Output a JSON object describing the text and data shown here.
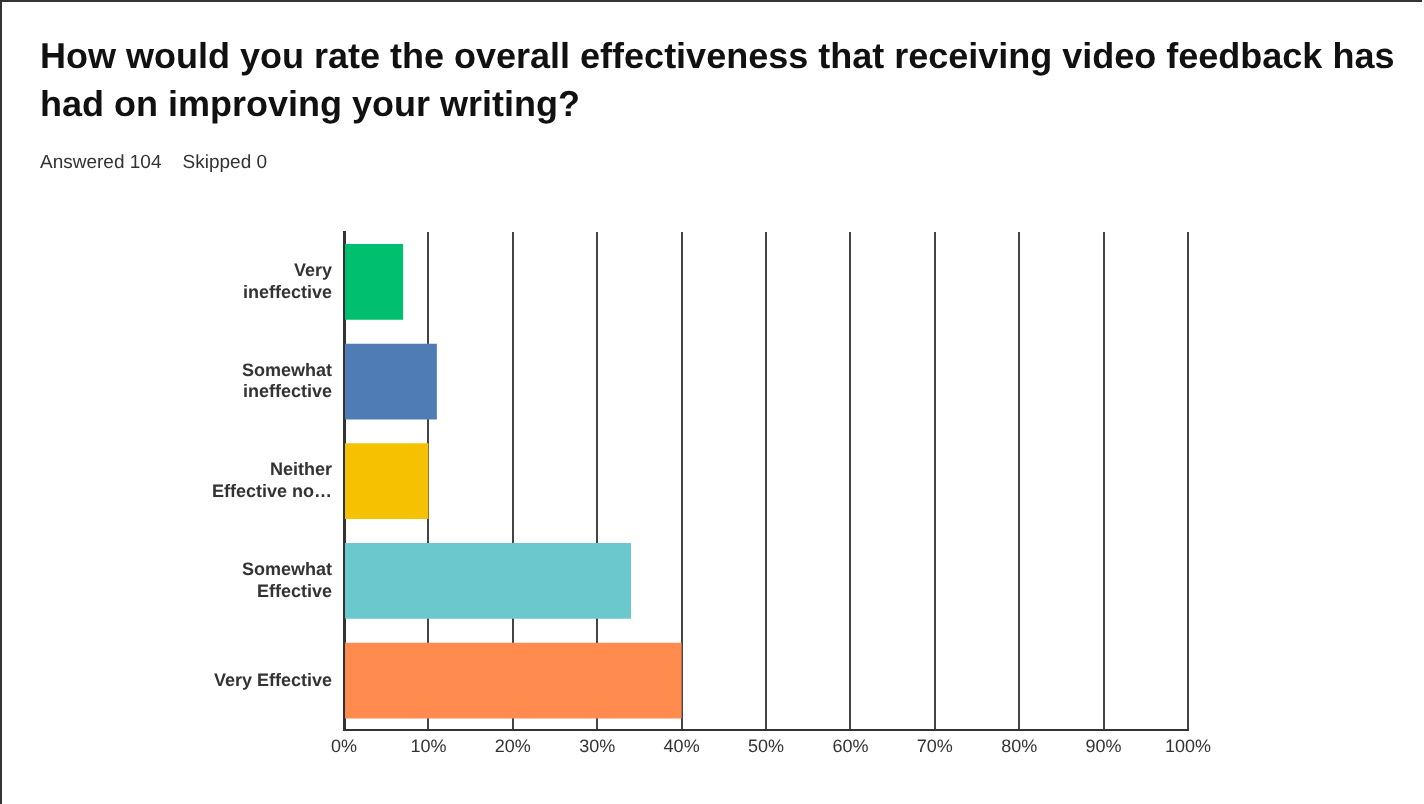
{
  "chart_data": {
    "type": "bar",
    "orientation": "horizontal",
    "title": "How would you rate the overall effectiveness that receiving video feedback has had on improving your writing?",
    "subtitle": "Answered 104    Skipped 0",
    "categories": [
      "Very ineffective",
      "Somewhat ineffective",
      "Neither Effective no…",
      "Somewhat Effective",
      "Very Effective"
    ],
    "values": [
      7,
      11,
      10,
      34,
      40
    ],
    "colors": [
      "#00bf6f",
      "#507cb6",
      "#f6c100",
      "#6bc8cd",
      "#ff8b4f"
    ],
    "xlim": [
      0,
      100
    ],
    "xticks": [
      {
        "value": 0,
        "label": "0%"
      },
      {
        "value": 10,
        "label": "10%"
      },
      {
        "value": 20,
        "label": "20%"
      },
      {
        "value": 30,
        "label": "30%"
      },
      {
        "value": 40,
        "label": "40%"
      },
      {
        "value": 50,
        "label": "50%"
      },
      {
        "value": 60,
        "label": "60%"
      },
      {
        "value": 70,
        "label": "70%"
      },
      {
        "value": 80,
        "label": "80%"
      },
      {
        "value": 90,
        "label": "90%"
      },
      {
        "value": 100,
        "label": "100%"
      }
    ],
    "grid": "x",
    "legend": false
  }
}
